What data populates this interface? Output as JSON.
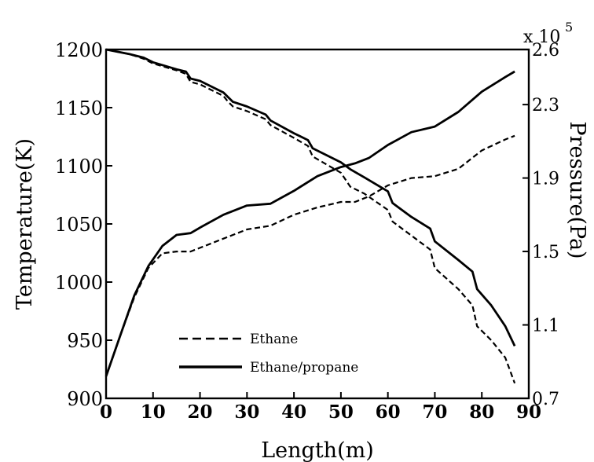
{
  "chart_data": {
    "type": "line",
    "xlabel": "Length(m)",
    "ylabel": "Temperature(K)",
    "y2label": "Pressure(Pa)",
    "y2_multiplier": {
      "base": "x 10",
      "exponent": "5"
    },
    "xlim": [
      0,
      90
    ],
    "ylim": [
      900,
      1200
    ],
    "y2lim": [
      0.7,
      2.6
    ],
    "xticks": [
      "0",
      "10",
      "20",
      "30",
      "40",
      "50",
      "60",
      "70",
      "80",
      "90"
    ],
    "yticks": [
      "900",
      "950",
      "1000",
      "1050",
      "1100",
      "1150",
      "1200"
    ],
    "y2ticks": [
      "0.7",
      "1.1",
      "1.5",
      "1.9",
      "2.3",
      "2.6"
    ],
    "grid": false,
    "legend_position": "bottom-left",
    "legend": [
      {
        "label": "Ethane",
        "style": "dashed"
      },
      {
        "label": "Ethane/propane",
        "style": "solid"
      }
    ],
    "series": [
      {
        "name": "Ethane",
        "axis": "left",
        "style": "dashed",
        "x": [
          0,
          5,
          8,
          10,
          15,
          17,
          18,
          20,
          25,
          26,
          27,
          30,
          34,
          35,
          40,
          43,
          44,
          50,
          52,
          55,
          60,
          61,
          65,
          69,
          70,
          75,
          78,
          79,
          82,
          85,
          87
        ],
        "y": [
          1200,
          1196,
          1192,
          1188,
          1182,
          1179,
          1172,
          1170,
          1160,
          1155,
          1151,
          1147,
          1140,
          1135,
          1124,
          1117,
          1108,
          1094,
          1082,
          1076,
          1062,
          1052,
          1040,
          1028,
          1012,
          994,
          980,
          962,
          950,
          935,
          913
        ]
      },
      {
        "name": "Ethane/propane",
        "axis": "left",
        "style": "solid",
        "x": [
          0,
          5,
          8,
          10,
          15,
          17,
          18,
          20,
          25,
          26,
          27,
          30,
          34,
          35,
          40,
          43,
          44,
          50,
          52,
          55,
          60,
          61,
          65,
          69,
          70,
          75,
          78,
          79,
          82,
          85,
          87
        ],
        "y": [
          1200,
          1196,
          1193,
          1189,
          1183,
          1181,
          1175,
          1173,
          1163,
          1159,
          1155,
          1151,
          1144,
          1139,
          1128,
          1122,
          1115,
          1103,
          1097,
          1090,
          1078,
          1068,
          1056,
          1046,
          1035,
          1019,
          1009,
          994,
          980,
          962,
          945
        ]
      },
      {
        "name": "Ethane",
        "axis": "right",
        "style": "dashed",
        "x": [
          0,
          3,
          6,
          9,
          12,
          15,
          18,
          20,
          25,
          30,
          35,
          40,
          45,
          50,
          53,
          56,
          60,
          65,
          70,
          75,
          80,
          85,
          87
        ],
        "y": [
          0.82,
          1.04,
          1.25,
          1.41,
          1.49,
          1.5,
          1.5,
          1.52,
          1.57,
          1.62,
          1.64,
          1.7,
          1.74,
          1.77,
          1.77,
          1.8,
          1.86,
          1.9,
          1.91,
          1.95,
          2.05,
          2.11,
          2.13
        ]
      },
      {
        "name": "Ethane/propane",
        "axis": "right",
        "style": "solid",
        "x": [
          0,
          3,
          6,
          9,
          12,
          15,
          18,
          20,
          25,
          30,
          35,
          40,
          45,
          50,
          53,
          56,
          60,
          65,
          70,
          75,
          80,
          85,
          87
        ],
        "y": [
          0.82,
          1.04,
          1.26,
          1.42,
          1.53,
          1.59,
          1.6,
          1.63,
          1.7,
          1.75,
          1.76,
          1.83,
          1.91,
          1.96,
          1.98,
          2.01,
          2.08,
          2.15,
          2.18,
          2.26,
          2.37,
          2.45,
          2.48
        ]
      }
    ]
  }
}
